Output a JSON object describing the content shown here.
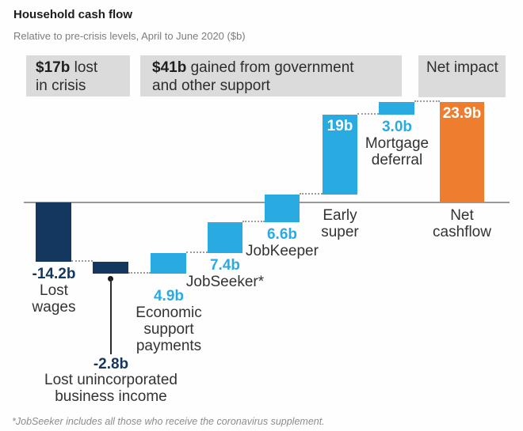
{
  "title": "Household cash flow",
  "subtitle": "Relative to pre-crisis levels, April to June 2020 ($b)",
  "footnote": "*JobSeeker includes all those who receive the coronavirus supplement.",
  "legend_boxes": [
    {
      "bold": "$17b",
      "line1": "lost",
      "line2": "in crisis"
    },
    {
      "bold": "$41b",
      "line1": "gained from government",
      "line2": "and other support"
    },
    {
      "bold": "",
      "line1": "Net impact",
      "line2": ""
    }
  ],
  "colors": {
    "negative": "#14375f",
    "positive": "#29abe2",
    "net": "#ee7d2e",
    "box_bg": "#dbdbdb",
    "axis": "#999999",
    "dotted": "#9b9b9b",
    "text_dark": "#333333",
    "text_gray": "#7d7d7d",
    "inside_label": "#ffffff"
  },
  "chart_data": {
    "type": "bar",
    "subtype": "waterfall",
    "title": "Household cash flow",
    "subtitle": "Relative to pre-crisis levels, April to June 2020 ($b)",
    "unit": "$b",
    "baseline_value": 0,
    "ylim": [
      -17.0,
      23.9
    ],
    "grid": false,
    "groups": [
      {
        "label": "$17b lost in crisis",
        "bars": [
          "Lost wages",
          "Lost unincorporated business income"
        ]
      },
      {
        "label": "$41b gained from government and other support",
        "bars": [
          "Economic support payments",
          "JobSeeker*",
          "JobKeeper",
          "Early super",
          "Mortgage deferral"
        ]
      },
      {
        "label": "Net impact",
        "bars": [
          "Net cashflow"
        ]
      }
    ],
    "bars": [
      {
        "name": "Lost wages",
        "label_lines": [
          "Lost",
          "wages"
        ],
        "value": -14.2,
        "value_label": "-14.2b",
        "role": "negative",
        "cumulative_start": 0,
        "cumulative_end": -14.2
      },
      {
        "name": "Lost unincorporated business income",
        "label_lines": [
          "Lost unincorporated",
          "business income"
        ],
        "value": -2.8,
        "value_label": "-2.8b",
        "role": "negative",
        "cumulative_start": -14.2,
        "cumulative_end": -17.0
      },
      {
        "name": "Economic support payments",
        "label_lines": [
          "Economic",
          "support",
          "payments"
        ],
        "value": 4.9,
        "value_label": "4.9b",
        "role": "positive",
        "cumulative_start": -17.0,
        "cumulative_end": -12.1
      },
      {
        "name": "JobSeeker*",
        "label_lines": [
          "JobSeeker*"
        ],
        "value": 7.4,
        "value_label": "7.4b",
        "role": "positive",
        "cumulative_start": -12.1,
        "cumulative_end": -4.7
      },
      {
        "name": "JobKeeper",
        "label_lines": [
          "JobKeeper"
        ],
        "value": 6.6,
        "value_label": "6.6b",
        "role": "positive",
        "cumulative_start": -4.7,
        "cumulative_end": 1.9
      },
      {
        "name": "Early super",
        "label_lines": [
          "Early",
          "super"
        ],
        "value": 19,
        "value_label": "19b",
        "role": "positive",
        "cumulative_start": 1.9,
        "cumulative_end": 20.9
      },
      {
        "name": "Mortgage deferral",
        "label_lines": [
          "Mortgage",
          "deferral"
        ],
        "value": 3.0,
        "value_label": "3.0b",
        "role": "positive",
        "cumulative_start": 20.9,
        "cumulative_end": 23.9
      },
      {
        "name": "Net cashflow",
        "label_lines": [
          "Net",
          "cashflow"
        ],
        "value": 23.9,
        "value_label": "23.9b",
        "role": "net",
        "cumulative_start": 0,
        "cumulative_end": 23.9
      }
    ]
  }
}
